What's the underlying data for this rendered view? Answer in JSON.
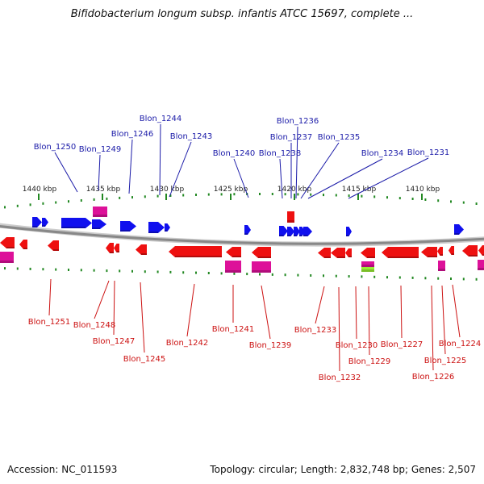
{
  "header": {
    "title": "Bifidobacterium longum subsp. infantis ATCC 15697, complete ..."
  },
  "footer": {
    "accession": "Accession: NC_011593",
    "summary": "Topology: circular; Length: 2,832,748 bp; Genes: 2,507"
  },
  "colors": {
    "forward_gene": "#1010ee",
    "reverse_gene": "#ee1010",
    "rna_magenta": "#dd1199",
    "rna_green": "#99ee33",
    "backbone": "#888888",
    "tick": "#228822",
    "label_top": "#1a1aa8",
    "label_bottom": "#cc1111"
  },
  "ticks": [
    {
      "label": "1440 kbp"
    },
    {
      "label": "1435 kbp"
    },
    {
      "label": "1430 kbp"
    },
    {
      "label": "1425 kbp"
    },
    {
      "label": "1420 kbp"
    },
    {
      "label": "1415 kbp"
    },
    {
      "label": "1410 kbp"
    }
  ],
  "genes_top": [
    {
      "name": "Blon_1250"
    },
    {
      "name": "Blon_1249"
    },
    {
      "name": "Blon_1246"
    },
    {
      "name": "Blon_1244"
    },
    {
      "name": "Blon_1243"
    },
    {
      "name": "Blon_1240"
    },
    {
      "name": "Blon_1238"
    },
    {
      "name": "Blon_1237"
    },
    {
      "name": "Blon_1236"
    },
    {
      "name": "Blon_1235"
    },
    {
      "name": "Blon_1234"
    },
    {
      "name": "Blon_1231"
    }
  ],
  "genes_bottom": [
    {
      "name": "Blon_1251"
    },
    {
      "name": "Blon_1248"
    },
    {
      "name": "Blon_1247"
    },
    {
      "name": "Blon_1245"
    },
    {
      "name": "Blon_1242"
    },
    {
      "name": "Blon_1241"
    },
    {
      "name": "Blon_1239"
    },
    {
      "name": "Blon_1233"
    },
    {
      "name": "Blon_1232"
    },
    {
      "name": "Blon_1230"
    },
    {
      "name": "Blon_1229"
    },
    {
      "name": "Blon_1227"
    },
    {
      "name": "Blon_1226"
    },
    {
      "name": "Blon_1225"
    },
    {
      "name": "Blon_1224"
    }
  ]
}
